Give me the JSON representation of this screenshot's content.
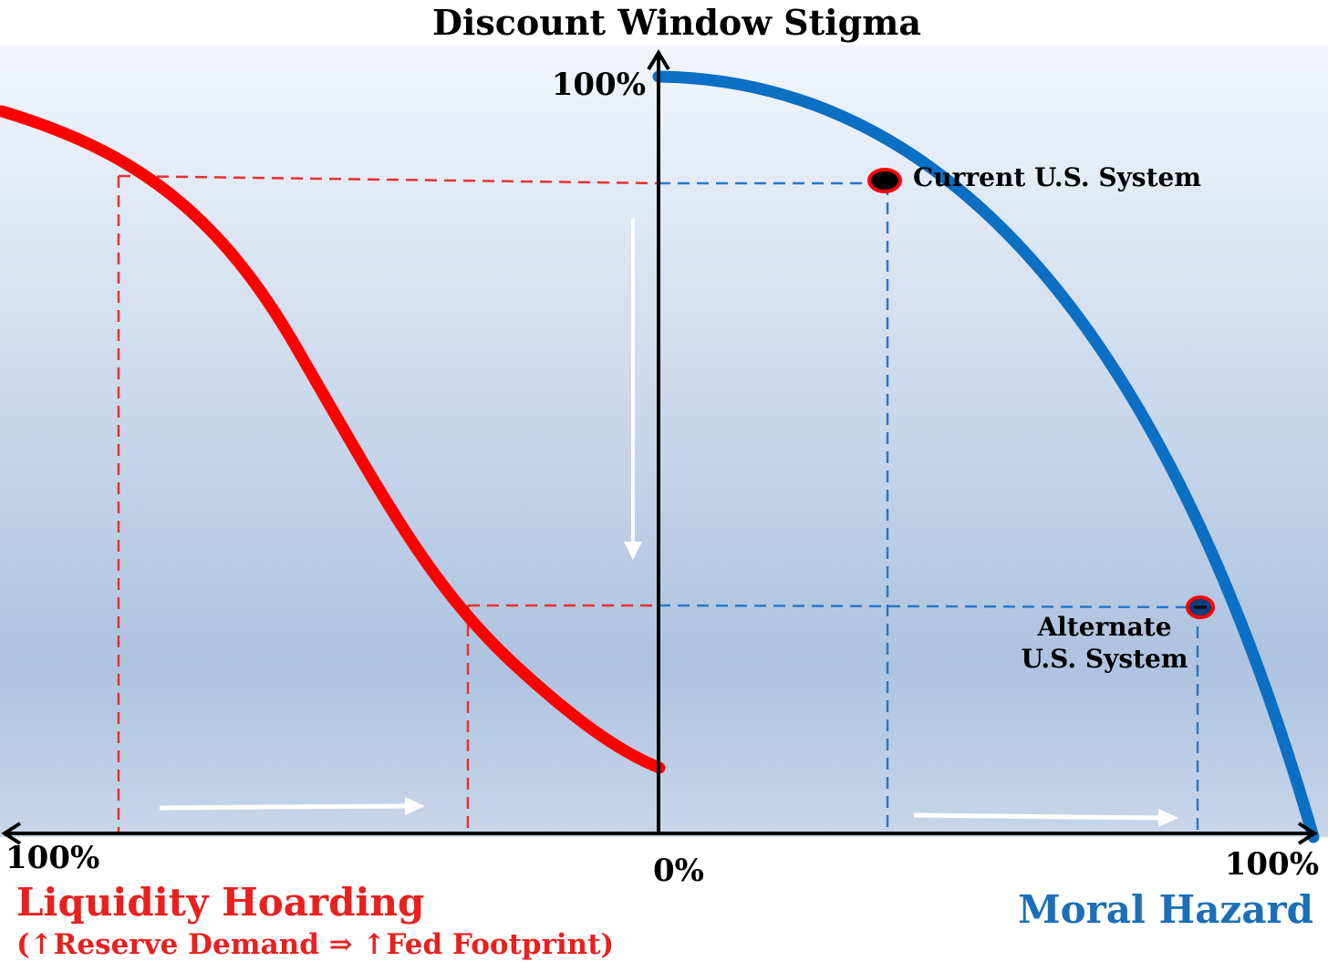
{
  "title": "Discount Window Stigma",
  "y_axis": {
    "top_label": "100%"
  },
  "x_axis": {
    "left_label": "100%",
    "center_label": "0%",
    "right_label": "100%"
  },
  "left_axis_title": "Liquidity Hoarding",
  "left_axis_subtitle": "(↑Reserve Demand ⇒ ↑Fed Footprint)",
  "right_axis_title": "Moral Hazard",
  "points": {
    "current": "Current U.S. System",
    "alternate_line1": "Alternate",
    "alternate_line2": "U.S. System"
  },
  "colors": {
    "red_curve": "#ff0000",
    "blue_curve": "#0b6fc4",
    "title_red": "#e8201e",
    "title_blue": "#1a6fb8",
    "axis": "#000000"
  }
}
